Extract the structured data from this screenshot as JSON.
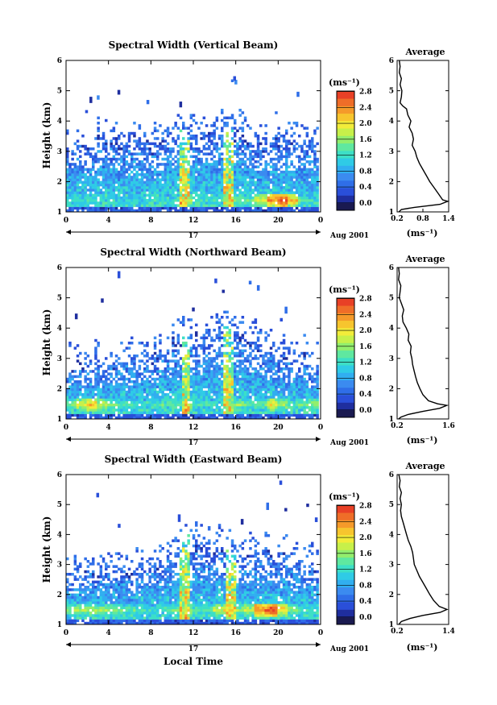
{
  "chart_data": [
    {
      "type": "heatmap",
      "title": "Spectral Width (Vertical Beam)",
      "xlabel": "",
      "ylabel": "Height (km)",
      "xlim": [
        0,
        24
      ],
      "ylim": [
        1,
        6
      ],
      "xticks": [
        "0",
        "4",
        "8",
        "12",
        "16",
        "20",
        "0"
      ],
      "yticks": [
        "1",
        "2",
        "3",
        "4",
        "5",
        "6"
      ],
      "date_label": "17",
      "month_label": "Aug 2001",
      "colorbar": {
        "unit_label": "(ms⁻¹)",
        "range": [
          0,
          3.0
        ],
        "ticks": [
          "0.0",
          "0.4",
          "0.8",
          "1.2",
          "1.6",
          "2.0",
          "2.4",
          "2.8"
        ],
        "colors": [
          "#1a1a50",
          "#1f2e9e",
          "#2a4fd9",
          "#2f6ee8",
          "#3b8bf0",
          "#31aef0",
          "#2fcbe6",
          "#3ddfc6",
          "#5fe8a0",
          "#92ee6d",
          "#c7f04a",
          "#f2ec3a",
          "#f7c52e",
          "#f59a2a",
          "#ef6d28",
          "#e84026"
        ]
      },
      "features": {
        "top_height_km": [
          3.1,
          3.3,
          3.2,
          3.4,
          3.3,
          3.2,
          3.5,
          3.3,
          3.4,
          3.6,
          3.5,
          3.5,
          3.6,
          3.5,
          3.8,
          3.6,
          3.7,
          3.6,
          3.5,
          3.5,
          3.4,
          3.3,
          3.2,
          3.4
        ],
        "bright_layer_km": 1.4,
        "bright_layer_intensity": [
          1.3,
          1.3,
          1.4,
          1.3,
          1.3,
          1.2,
          1.2,
          1.1,
          1.0,
          1.2,
          1.4,
          1.9,
          1.5,
          1.4,
          1.3,
          1.6,
          1.8,
          1.7,
          2.1,
          2.6,
          2.9,
          2.4,
          1.6,
          1.2
        ],
        "vertical_streaks_hour": [
          11.3,
          15.5
        ]
      },
      "profile": {
        "title": "Average",
        "xlabel": "(ms⁻¹)",
        "xlim": [
          0.2,
          1.4
        ],
        "xticks": [
          "0.2",
          "0.8",
          "1.4"
        ],
        "ylim": [
          1,
          6
        ],
        "yticks": [
          "1",
          "2",
          "3",
          "4",
          "5",
          "6"
        ],
        "points": [
          [
            0.25,
            6.0
          ],
          [
            0.27,
            5.8
          ],
          [
            0.25,
            5.6
          ],
          [
            0.3,
            5.4
          ],
          [
            0.27,
            5.2
          ],
          [
            0.31,
            5.0
          ],
          [
            0.3,
            4.8
          ],
          [
            0.27,
            4.6
          ],
          [
            0.33,
            4.5
          ],
          [
            0.42,
            4.4
          ],
          [
            0.45,
            4.2
          ],
          [
            0.52,
            4.0
          ],
          [
            0.48,
            3.8
          ],
          [
            0.55,
            3.6
          ],
          [
            0.58,
            3.4
          ],
          [
            0.55,
            3.2
          ],
          [
            0.62,
            3.0
          ],
          [
            0.66,
            2.8
          ],
          [
            0.72,
            2.6
          ],
          [
            0.8,
            2.4
          ],
          [
            0.88,
            2.2
          ],
          [
            0.96,
            2.0
          ],
          [
            1.06,
            1.8
          ],
          [
            1.16,
            1.6
          ],
          [
            1.26,
            1.4
          ],
          [
            1.38,
            1.35
          ],
          [
            1.2,
            1.25
          ],
          [
            0.6,
            1.15
          ],
          [
            0.3,
            1.08
          ],
          [
            0.24,
            1.0
          ]
        ]
      }
    },
    {
      "type": "heatmap",
      "title": "Spectral Width (Northward Beam)",
      "xlabel": "",
      "ylabel": "Height (km)",
      "xlim": [
        0,
        24
      ],
      "ylim": [
        1,
        6
      ],
      "xticks": [
        "0",
        "4",
        "8",
        "12",
        "16",
        "20",
        "0"
      ],
      "yticks": [
        "1",
        "2",
        "3",
        "4",
        "5",
        "6"
      ],
      "date_label": "17",
      "month_label": "Aug 2001",
      "colorbar": {
        "unit_label": "(ms⁻¹)",
        "range": [
          0,
          3.0
        ],
        "ticks": [
          "0.0",
          "0.4",
          "0.8",
          "1.2",
          "1.6",
          "2.0",
          "2.4",
          "2.8"
        ],
        "colors": [
          "#1a1a50",
          "#1f2e9e",
          "#2a4fd9",
          "#2f6ee8",
          "#3b8bf0",
          "#31aef0",
          "#2fcbe6",
          "#3ddfc6",
          "#5fe8a0",
          "#92ee6d",
          "#c7f04a",
          "#f2ec3a",
          "#f7c52e",
          "#f59a2a",
          "#ef6d28",
          "#e84026"
        ]
      },
      "features": {
        "top_height_km": [
          2.8,
          2.9,
          3.0,
          2.9,
          3.0,
          3.1,
          3.0,
          3.2,
          3.3,
          3.4,
          3.6,
          3.8,
          3.7,
          3.8,
          4.0,
          3.9,
          3.8,
          3.6,
          3.5,
          3.4,
          3.3,
          3.1,
          3.0,
          2.9
        ],
        "bright_layer_km": 1.5,
        "bright_layer_intensity": [
          1.8,
          2.1,
          2.4,
          2.0,
          1.7,
          1.6,
          1.5,
          1.4,
          1.5,
          1.6,
          1.7,
          2.0,
          1.6,
          1.5,
          1.4,
          1.6,
          1.8,
          1.6,
          1.6,
          2.2,
          1.9,
          1.5,
          1.7,
          1.8
        ],
        "vertical_streaks_hour": [
          11.4,
          15.5
        ]
      },
      "profile": {
        "title": "Average",
        "xlabel": "(ms⁻¹)",
        "xlim": [
          0.2,
          1.6
        ],
        "xticks": [
          "0.2",
          "1.6"
        ],
        "ylim": [
          1,
          6
        ],
        "yticks": [
          "1",
          "2",
          "3",
          "4",
          "5",
          "6"
        ],
        "points": [
          [
            0.24,
            6.0
          ],
          [
            0.26,
            5.8
          ],
          [
            0.24,
            5.6
          ],
          [
            0.3,
            5.4
          ],
          [
            0.28,
            5.2
          ],
          [
            0.26,
            5.0
          ],
          [
            0.32,
            4.8
          ],
          [
            0.38,
            4.6
          ],
          [
            0.34,
            4.4
          ],
          [
            0.36,
            4.2
          ],
          [
            0.45,
            4.0
          ],
          [
            0.52,
            3.8
          ],
          [
            0.5,
            3.6
          ],
          [
            0.58,
            3.4
          ],
          [
            0.56,
            3.2
          ],
          [
            0.6,
            3.0
          ],
          [
            0.62,
            2.8
          ],
          [
            0.66,
            2.6
          ],
          [
            0.7,
            2.4
          ],
          [
            0.75,
            2.2
          ],
          [
            0.82,
            2.0
          ],
          [
            0.9,
            1.8
          ],
          [
            1.05,
            1.6
          ],
          [
            1.3,
            1.5
          ],
          [
            1.55,
            1.45
          ],
          [
            1.35,
            1.35
          ],
          [
            0.9,
            1.25
          ],
          [
            0.5,
            1.15
          ],
          [
            0.3,
            1.06
          ],
          [
            0.24,
            1.0
          ]
        ]
      }
    },
    {
      "type": "heatmap",
      "title": "Spectral Width (Eastward Beam)",
      "xlabel": "Local Time",
      "ylabel": "Height (km)",
      "xlim": [
        0,
        24
      ],
      "ylim": [
        1,
        6
      ],
      "xticks": [
        "0",
        "4",
        "8",
        "12",
        "16",
        "20",
        "0"
      ],
      "yticks": [
        "1",
        "2",
        "3",
        "4",
        "5",
        "6"
      ],
      "date_label": "17",
      "month_label": "Aug 2001",
      "colorbar": {
        "unit_label": "(ms⁻¹)",
        "range": [
          0,
          3.0
        ],
        "ticks": [
          "0.0",
          "0.4",
          "0.8",
          "1.2",
          "1.6",
          "2.0",
          "2.4",
          "2.8"
        ],
        "colors": [
          "#1a1a50",
          "#1f2e9e",
          "#2a4fd9",
          "#2f6ee8",
          "#3b8bf0",
          "#31aef0",
          "#2fcbe6",
          "#3ddfc6",
          "#5fe8a0",
          "#92ee6d",
          "#c7f04a",
          "#f2ec3a",
          "#f7c52e",
          "#f59a2a",
          "#ef6d28",
          "#e84026"
        ]
      },
      "features": {
        "top_height_km": [
          2.6,
          2.8,
          2.8,
          2.9,
          2.9,
          3.0,
          3.0,
          3.1,
          3.1,
          3.3,
          3.4,
          3.8,
          3.6,
          3.5,
          3.6,
          3.5,
          3.4,
          3.3,
          3.4,
          3.3,
          3.2,
          3.1,
          3.0,
          2.9
        ],
        "bright_layer_km": 1.5,
        "bright_layer_intensity": [
          1.8,
          1.9,
          2.0,
          1.9,
          1.8,
          1.7,
          1.6,
          1.5,
          1.4,
          1.5,
          1.7,
          1.9,
          1.6,
          1.7,
          2.0,
          2.3,
          1.8,
          2.0,
          2.7,
          2.9,
          2.3,
          1.8,
          1.6,
          1.5
        ],
        "vertical_streaks_hour": [
          11.3,
          15.7
        ]
      },
      "profile": {
        "title": "Average",
        "xlabel": "(ms⁻¹)",
        "xlim": [
          0.2,
          1.4
        ],
        "xticks": [
          "0.2",
          "1.4"
        ],
        "ylim": [
          1,
          6
        ],
        "yticks": [
          "1",
          "2",
          "3",
          "4",
          "5",
          "6"
        ],
        "points": [
          [
            0.24,
            6.0
          ],
          [
            0.27,
            5.8
          ],
          [
            0.25,
            5.6
          ],
          [
            0.3,
            5.4
          ],
          [
            0.27,
            5.2
          ],
          [
            0.3,
            5.0
          ],
          [
            0.28,
            4.8
          ],
          [
            0.3,
            4.6
          ],
          [
            0.34,
            4.4
          ],
          [
            0.38,
            4.2
          ],
          [
            0.42,
            4.0
          ],
          [
            0.46,
            3.8
          ],
          [
            0.52,
            3.6
          ],
          [
            0.56,
            3.4
          ],
          [
            0.58,
            3.2
          ],
          [
            0.6,
            3.0
          ],
          [
            0.66,
            2.8
          ],
          [
            0.72,
            2.6
          ],
          [
            0.8,
            2.4
          ],
          [
            0.88,
            2.2
          ],
          [
            0.96,
            2.0
          ],
          [
            1.05,
            1.8
          ],
          [
            1.18,
            1.6
          ],
          [
            1.36,
            1.5
          ],
          [
            1.2,
            1.4
          ],
          [
            0.8,
            1.3
          ],
          [
            0.5,
            1.2
          ],
          [
            0.3,
            1.1
          ],
          [
            0.24,
            1.0
          ]
        ]
      }
    }
  ]
}
